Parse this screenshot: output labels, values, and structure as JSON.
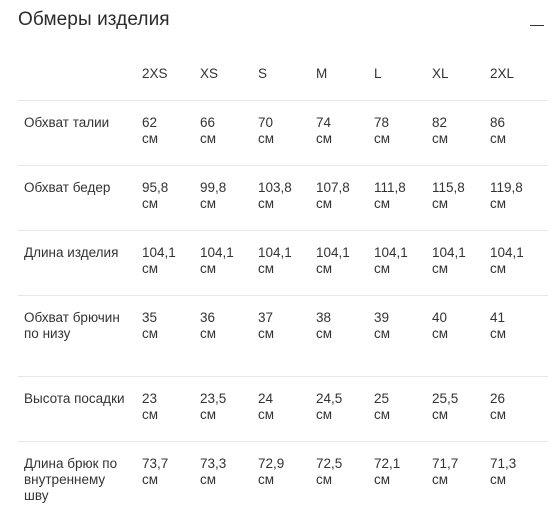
{
  "section": {
    "title": "Обмеры изделия",
    "collapse_icon": "minus-icon"
  },
  "table": {
    "sizes": [
      "2XS",
      "XS",
      "S",
      "M",
      "L",
      "XL",
      "2XL"
    ],
    "unit": "см",
    "rows": [
      {
        "label": "Обхват талии",
        "values": [
          "62",
          "66",
          "70",
          "74",
          "78",
          "82",
          "86"
        ]
      },
      {
        "label": "Обхват бедер",
        "values": [
          "95,8",
          "99,8",
          "103,8",
          "107,8",
          "111,8",
          "115,8",
          "119,8"
        ]
      },
      {
        "label": "Длина изделия",
        "values": [
          "104,1",
          "104,1",
          "104,1",
          "104,1",
          "104,1",
          "104,1",
          "104,1"
        ]
      },
      {
        "label": "Обхват брючин по низу",
        "values": [
          "35",
          "36",
          "37",
          "38",
          "39",
          "40",
          "41"
        ]
      },
      {
        "label": "Высота посадки",
        "values": [
          "23",
          "23,5",
          "24",
          "24,5",
          "25",
          "25,5",
          "26"
        ]
      },
      {
        "label": "Длина брюк по внутреннему шву",
        "values": [
          "73,7",
          "73,3",
          "72,9",
          "72,5",
          "72,1",
          "71,7",
          "71,3"
        ]
      }
    ]
  }
}
